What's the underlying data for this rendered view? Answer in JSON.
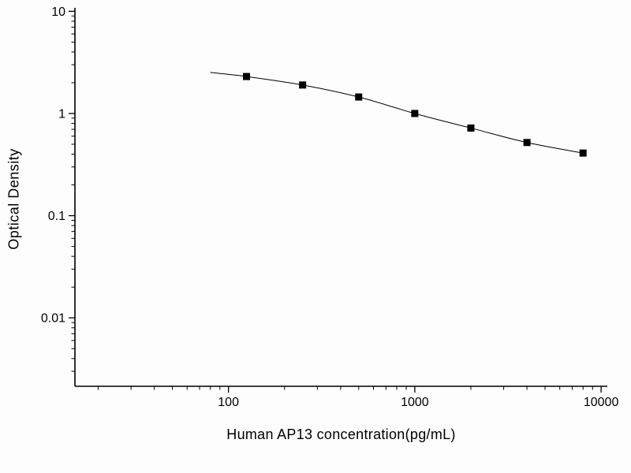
{
  "chart_data": {
    "type": "scatter",
    "title": "",
    "xlabel": "Human AP13 concentration(pg/mL)",
    "ylabel": "Optical Density",
    "xscale": "log",
    "yscale": "log",
    "xlim": [
      15,
      10800
    ],
    "ylim": [
      0.00214,
      10.8
    ],
    "x_ticks": [
      100,
      1000,
      10000
    ],
    "x_tick_labels": [
      "100",
      "1000",
      "10000"
    ],
    "y_ticks": [
      0.01,
      0.1,
      1,
      10
    ],
    "y_tick_labels": [
      "0.01",
      "0.1",
      "1",
      "10"
    ],
    "x": [
      125,
      250,
      500,
      1000,
      2000,
      4000,
      8000
    ],
    "y": [
      2.3,
      1.9,
      1.45,
      1.0,
      0.72,
      0.52,
      0.41
    ],
    "curve_start": {
      "x": 80,
      "y": 2.52
    },
    "marker": "square",
    "marker_color": "#000000",
    "line_color": "#000000",
    "axis_color": "#000000",
    "background": "#fdfdfd",
    "grid": false,
    "legend": "none"
  }
}
